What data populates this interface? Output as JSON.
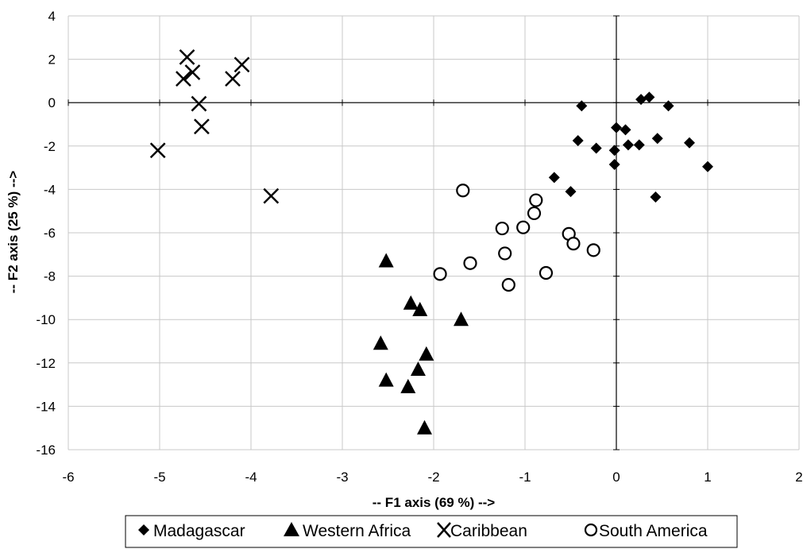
{
  "chart_data": {
    "type": "scatter",
    "xlabel": "--  F1 axis (69 %) -->",
    "ylabel": "--  F2 axis (25 %) -->",
    "xlim": [
      -6,
      2
    ],
    "ylim": [
      -16,
      4
    ],
    "x_ticks": [
      -6,
      -5,
      -4,
      -3,
      -2,
      -1,
      0,
      1,
      2
    ],
    "y_ticks": [
      -16,
      -14,
      -12,
      -10,
      -8,
      -6,
      -4,
      -2,
      0,
      2,
      4
    ],
    "grid": true,
    "legend_position": "bottom",
    "series": [
      {
        "name": "Madagascar",
        "marker": "diamond",
        "color": "#000000",
        "points": [
          [
            -0.38,
            -0.15
          ],
          [
            0.27,
            0.15
          ],
          [
            0.36,
            0.25
          ],
          [
            0.57,
            -0.15
          ],
          [
            0.0,
            -1.15
          ],
          [
            0.1,
            -1.25
          ],
          [
            -0.42,
            -1.75
          ],
          [
            -0.22,
            -2.1
          ],
          [
            0.13,
            -1.95
          ],
          [
            0.25,
            -1.95
          ],
          [
            0.45,
            -1.65
          ],
          [
            0.8,
            -1.85
          ],
          [
            -0.02,
            -2.2
          ],
          [
            -0.02,
            -2.85
          ],
          [
            1.0,
            -2.95
          ],
          [
            -0.68,
            -3.45
          ],
          [
            -0.5,
            -4.1
          ],
          [
            0.43,
            -4.35
          ]
        ]
      },
      {
        "name": "Western Africa",
        "marker": "triangle",
        "color": "#000000",
        "points": [
          [
            -2.52,
            -7.3
          ],
          [
            -2.25,
            -9.25
          ],
          [
            -2.15,
            -9.55
          ],
          [
            -1.7,
            -10.0
          ],
          [
            -2.58,
            -11.1
          ],
          [
            -2.08,
            -11.6
          ],
          [
            -2.17,
            -12.3
          ],
          [
            -2.52,
            -12.8
          ],
          [
            -2.28,
            -13.1
          ],
          [
            -2.1,
            -15.0
          ]
        ]
      },
      {
        "name": "Caribbean",
        "marker": "x",
        "color": "#000000",
        "points": [
          [
            -4.7,
            2.1
          ],
          [
            -4.64,
            1.4
          ],
          [
            -4.74,
            1.1
          ],
          [
            -4.1,
            1.75
          ],
          [
            -4.2,
            1.1
          ],
          [
            -4.57,
            -0.05
          ],
          [
            -4.54,
            -1.1
          ],
          [
            -5.02,
            -2.2
          ],
          [
            -3.78,
            -4.3
          ]
        ]
      },
      {
        "name": "South America",
        "marker": "circle",
        "color": "#000000",
        "points": [
          [
            -1.68,
            -4.05
          ],
          [
            -0.88,
            -4.5
          ],
          [
            -0.9,
            -5.1
          ],
          [
            -1.25,
            -5.8
          ],
          [
            -1.02,
            -5.75
          ],
          [
            -0.52,
            -6.05
          ],
          [
            -0.47,
            -6.5
          ],
          [
            -1.22,
            -6.95
          ],
          [
            -0.25,
            -6.8
          ],
          [
            -1.6,
            -7.4
          ],
          [
            -1.93,
            -7.9
          ],
          [
            -0.77,
            -7.85
          ],
          [
            -1.18,
            -8.4
          ]
        ]
      }
    ]
  }
}
